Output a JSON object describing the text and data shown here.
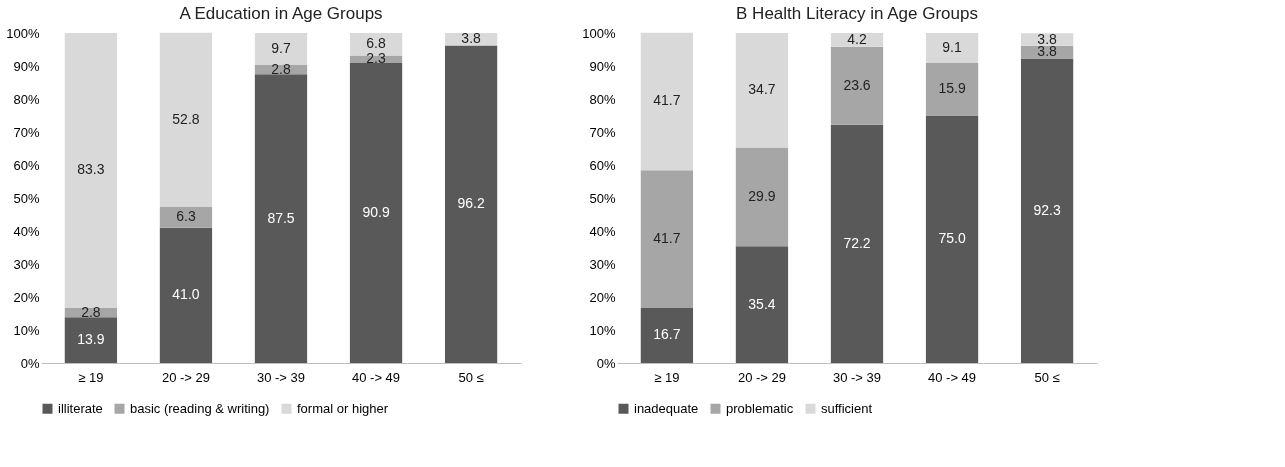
{
  "chart_data": [
    {
      "type": "bar",
      "title": "A   Education in Age Groups",
      "stacked": true,
      "legend": "bottom",
      "grid": false,
      "categories": [
        "≥ 19",
        "20 -> 29",
        "30 -> 39",
        "40 -> 49",
        "50 ≤"
      ],
      "ylim": [
        0,
        100
      ],
      "yticks": [
        {
          "value": 0,
          "label": "0%"
        },
        {
          "value": 10,
          "label": "10%"
        },
        {
          "value": 20,
          "label": "20%"
        },
        {
          "value": 30,
          "label": "30%"
        },
        {
          "value": 40,
          "label": "40%"
        },
        {
          "value": 50,
          "label": "50%"
        },
        {
          "value": 60,
          "label": "60%"
        },
        {
          "value": 70,
          "label": "70%"
        },
        {
          "value": 80,
          "label": "80%"
        },
        {
          "value": 90,
          "label": "90%"
        },
        {
          "value": 100,
          "label": "100%"
        }
      ],
      "series": [
        {
          "name": "illiterate",
          "color": "#595959",
          "values": [
            13.9,
            41.0,
            87.5,
            90.9,
            96.2
          ],
          "value_labels": [
            "13.9",
            "41.0",
            "87.5",
            "90.9",
            "96.2"
          ]
        },
        {
          "name": "basic (reading & writing)",
          "color": "#a6a6a6",
          "values": [
            2.8,
            6.3,
            2.8,
            2.3,
            null
          ],
          "value_labels": [
            "2.8",
            "6.3",
            "2.8",
            "2.3",
            null
          ]
        },
        {
          "name": "formal or higher",
          "color": "#d9d9d9",
          "values": [
            83.3,
            52.8,
            9.7,
            6.8,
            3.8
          ],
          "value_labels": [
            "83.3",
            "52.8",
            "9.7",
            "6.8",
            "3.8"
          ]
        }
      ]
    },
    {
      "type": "bar",
      "title": "B   Health Literacy in Age Groups",
      "stacked": true,
      "legend": "bottom",
      "grid": false,
      "categories": [
        "≥ 19",
        "20 -> 29",
        "30 -> 39",
        "40 -> 49",
        "50 ≤"
      ],
      "ylim": [
        0,
        100
      ],
      "yticks": [
        {
          "value": 0,
          "label": "0%"
        },
        {
          "value": 10,
          "label": "10%"
        },
        {
          "value": 20,
          "label": "20%"
        },
        {
          "value": 30,
          "label": "30%"
        },
        {
          "value": 40,
          "label": "40%"
        },
        {
          "value": 50,
          "label": "50%"
        },
        {
          "value": 60,
          "label": "60%"
        },
        {
          "value": 70,
          "label": "70%"
        },
        {
          "value": 80,
          "label": "80%"
        },
        {
          "value": 90,
          "label": "90%"
        },
        {
          "value": 100,
          "label": "100%"
        }
      ],
      "series": [
        {
          "name": "inadequate",
          "color": "#595959",
          "values": [
            16.7,
            35.4,
            72.2,
            75.0,
            92.3
          ],
          "value_labels": [
            "16.7",
            "35.4",
            "72.2",
            "75.0",
            "92.3"
          ]
        },
        {
          "name": "problematic",
          "color": "#a6a6a6",
          "values": [
            41.7,
            29.9,
            23.6,
            15.9,
            3.8
          ],
          "value_labels": [
            "41.7",
            "29.9",
            "23.6",
            "15.9",
            "3.8"
          ]
        },
        {
          "name": "sufficient",
          "color": "#d9d9d9",
          "values": [
            41.7,
            34.7,
            4.2,
            9.1,
            3.8
          ],
          "value_labels": [
            "41.7",
            "34.7",
            "4.2",
            "9.1",
            "3.8"
          ]
        }
      ]
    }
  ]
}
